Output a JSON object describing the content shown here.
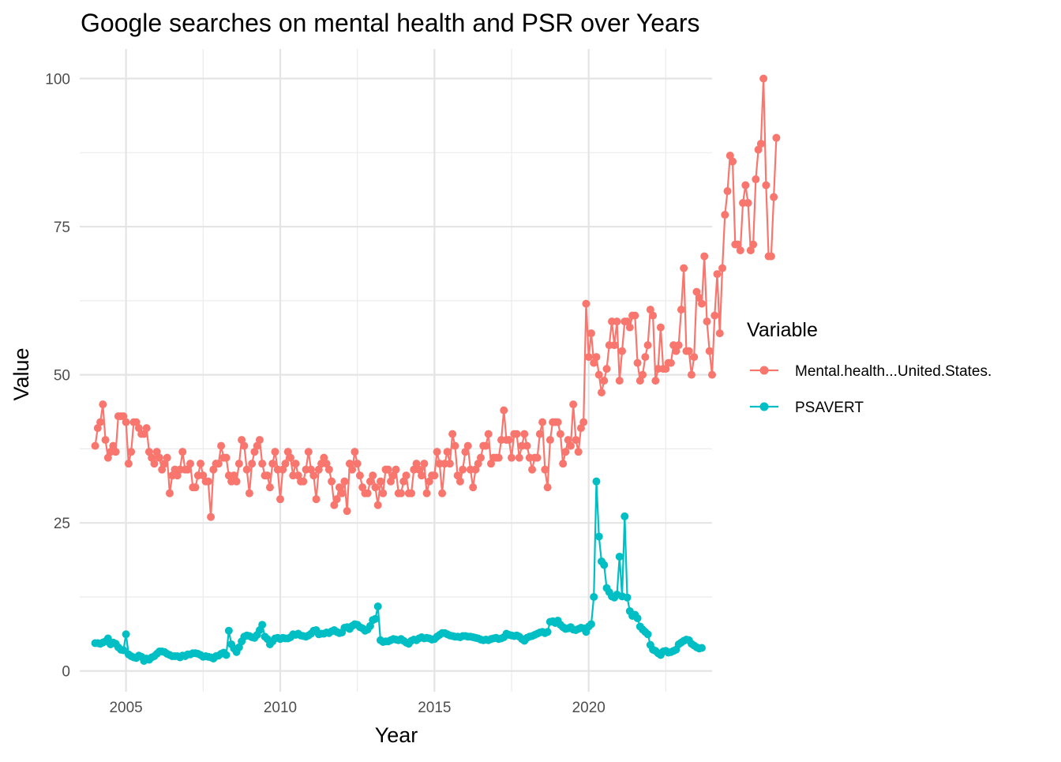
{
  "chart_data": {
    "type": "line",
    "title": "Google searches on mental health and PSR over Years",
    "xlabel": "Year",
    "ylabel": "Value",
    "xlim": [
      2003.5,
      2024.0
    ],
    "ylim": [
      -3.5,
      105
    ],
    "x_ticks": [
      2005,
      2010,
      2015,
      2020
    ],
    "x_tick_labels": [
      "2005",
      "2010",
      "2015",
      "2020"
    ],
    "y_ticks": [
      0,
      25,
      50,
      75,
      100
    ],
    "y_tick_labels": [
      "0",
      "25",
      "50",
      "75",
      "100"
    ],
    "grid": true,
    "legend": {
      "title": "Variable",
      "position": "right"
    },
    "x_start": "2004-01",
    "x_step": "monthly",
    "series": [
      {
        "name": "Mental.health...United.States.",
        "color": "#F8766D",
        "values": [
          38,
          41,
          42,
          45,
          39,
          36,
          37,
          38,
          37,
          43,
          43,
          43,
          42,
          35,
          37,
          42,
          42,
          41,
          40,
          40,
          41,
          37,
          36,
          35,
          37,
          36,
          34,
          35,
          36,
          30,
          33,
          34,
          33,
          34,
          37,
          34,
          34,
          35,
          31,
          31,
          33,
          35,
          33,
          32,
          32,
          26,
          34,
          35,
          35,
          38,
          36,
          36,
          33,
          32,
          33,
          32,
          35,
          39,
          38,
          34,
          30,
          35,
          37,
          38,
          39,
          35,
          33,
          33,
          31,
          35,
          37,
          34,
          29,
          34,
          35,
          37,
          36,
          33,
          35,
          33,
          32,
          32,
          34,
          37,
          34,
          33,
          29,
          34,
          35,
          36,
          35,
          34,
          32,
          28,
          29,
          31,
          30,
          32,
          27,
          35,
          34,
          37,
          35,
          33,
          31,
          30,
          30,
          32,
          33,
          31,
          28,
          32,
          30,
          34,
          34,
          32,
          33,
          34,
          30,
          30,
          32,
          33,
          30,
          30,
          34,
          35,
          34,
          33,
          35,
          30,
          32,
          33,
          33,
          37,
          35,
          30,
          35,
          37,
          35,
          40,
          38,
          33,
          32,
          34,
          37,
          38,
          34,
          31,
          34,
          35,
          36,
          38,
          38,
          40,
          35,
          36,
          36,
          36,
          39,
          44,
          39,
          39,
          36,
          40,
          40,
          36,
          38,
          40,
          38,
          36,
          34,
          36,
          36,
          40,
          42,
          34,
          31,
          39,
          42,
          42,
          42,
          40,
          35,
          37,
          39,
          38,
          45,
          39,
          37,
          41,
          42,
          62,
          53,
          57,
          52,
          53,
          50,
          47,
          49,
          51,
          55,
          59,
          55,
          59,
          49,
          54,
          59,
          59,
          58,
          60,
          60,
          52,
          49,
          50,
          53,
          55,
          61,
          60,
          49,
          51,
          58,
          51,
          51,
          52,
          52,
          55,
          54,
          55,
          61,
          68,
          54,
          54,
          50,
          53,
          64,
          63,
          62,
          70,
          59,
          54,
          50,
          60,
          67,
          57,
          68,
          77,
          81,
          87,
          86,
          72,
          72,
          71,
          79,
          82,
          79,
          71,
          72,
          83,
          88,
          89,
          100,
          82,
          70,
          70,
          80,
          90
        ]
      },
      {
        "name": "PSAVERT",
        "color": "#00BFC4",
        "values": [
          4.7,
          4.7,
          4.6,
          4.8,
          5.0,
          5.5,
          4.5,
          4.8,
          4.6,
          4.0,
          3.6,
          3.5,
          6.2,
          2.8,
          2.5,
          2.3,
          2.2,
          2.6,
          2.4,
          1.7,
          2.1,
          1.9,
          2.3,
          2.5,
          2.9,
          3.3,
          3.3,
          3.2,
          2.9,
          2.7,
          2.5,
          2.5,
          2.5,
          2.3,
          2.6,
          2.5,
          2.8,
          2.8,
          3.0,
          3.0,
          2.9,
          2.7,
          2.4,
          2.5,
          2.4,
          2.3,
          2.1,
          2.5,
          2.6,
          2.9,
          3.1,
          2.7,
          6.8,
          4.5,
          3.8,
          3.2,
          4.0,
          5.0,
          5.8,
          6.0,
          5.9,
          5.7,
          5.6,
          6.1,
          6.9,
          7.8,
          5.8,
          5.4,
          4.5,
          5.0,
          5.5,
          5.6,
          5.4,
          5.6,
          5.5,
          5.5,
          5.7,
          6.2,
          6.1,
          6.3,
          6.0,
          5.9,
          5.8,
          6.0,
          6.3,
          6.8,
          6.9,
          6.2,
          6.3,
          6.3,
          6.5,
          6.4,
          6.7,
          6.9,
          6.6,
          6.4,
          6.5,
          7.3,
          7.4,
          7.1,
          7.6,
          7.9,
          7.8,
          7.4,
          7.2,
          6.8,
          7.0,
          7.6,
          8.6,
          8.8,
          10.9,
          5.2,
          4.9,
          5.0,
          5.0,
          5.2,
          5.4,
          5.3,
          5.2,
          5.4,
          5.1,
          4.8,
          4.6,
          5.1,
          5.3,
          5.2,
          5.5,
          5.7,
          5.5,
          5.6,
          5.5,
          5.3,
          5.4,
          5.8,
          6.1,
          6.4,
          6.4,
          6.2,
          6.0,
          5.9,
          5.8,
          5.8,
          5.7,
          5.9,
          5.9,
          5.8,
          5.8,
          5.7,
          5.6,
          5.5,
          5.3,
          5.2,
          5.3,
          5.2,
          5.4,
          5.5,
          5.6,
          5.4,
          5.5,
          5.7,
          6.3,
          6.1,
          6.0,
          5.9,
          6.0,
          5.8,
          5.4,
          5.1,
          5.6,
          5.8,
          5.9,
          6.1,
          6.3,
          6.5,
          6.6,
          6.4,
          6.6,
          8.3,
          8.4,
          8.1,
          8.5,
          7.8,
          7.4,
          7.1,
          7.2,
          7.4,
          7.0,
          6.9,
          7.1,
          7.3,
          7.2,
          6.6,
          7.5,
          7.9,
          12.5,
          32.0,
          22.7,
          18.5,
          17.9,
          14.0,
          13.3,
          12.6,
          12.4,
          12.9,
          19.3,
          12.6,
          26.1,
          12.4,
          10.1,
          9.3,
          9.5,
          8.9,
          7.5,
          7.0,
          6.6,
          6.2,
          4.4,
          3.6,
          3.4,
          3.0,
          2.7,
          3.3,
          3.4,
          3.1,
          3.2,
          3.4,
          3.6,
          4.5,
          4.8,
          5.1,
          5.3,
          5.2,
          4.6,
          4.3,
          4.0,
          3.8,
          3.9
        ]
      }
    ]
  }
}
